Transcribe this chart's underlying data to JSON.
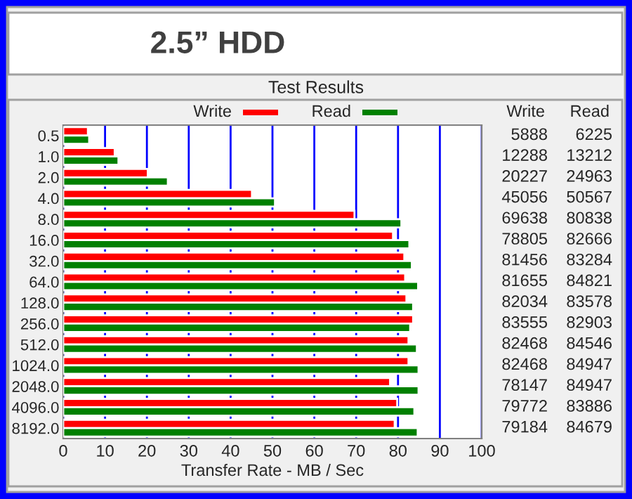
{
  "chart_data": {
    "type": "bar",
    "orientation": "horizontal",
    "title": "2.5” HDD",
    "subtitle": "Test Results",
    "xlabel": "Transfer Rate - MB / Sec",
    "categories": [
      "0.5",
      "1.0",
      "2.0",
      "4.0",
      "8.0",
      "16.0",
      "32.0",
      "64.0",
      "128.0",
      "256.0",
      "512.0",
      "1024.0",
      "2048.0",
      "4096.0",
      "8192.0"
    ],
    "series": [
      {
        "name": "Write",
        "color": "#ff0000",
        "values": [
          5.9,
          12.3,
          20.2,
          45.1,
          69.6,
          78.8,
          81.5,
          81.7,
          82.0,
          83.6,
          82.5,
          82.5,
          78.1,
          79.8,
          79.2
        ]
      },
      {
        "name": "Read",
        "color": "#008000",
        "values": [
          6.2,
          13.2,
          25.0,
          50.6,
          80.8,
          82.7,
          83.3,
          84.8,
          83.6,
          82.9,
          84.5,
          84.9,
          84.9,
          83.9,
          84.7
        ]
      }
    ],
    "annotations": [
      "5888",
      "12288",
      "20227",
      "45056",
      "69638",
      "78805",
      "81456",
      "81655",
      "82034",
      "83555",
      "82468",
      "82468",
      "78147",
      "79772",
      "79184",
      "6225",
      "13212",
      "24963",
      "50567",
      "80838",
      "82666",
      "83284",
      "84821",
      "83578",
      "82903",
      "84546",
      "84947",
      "84947",
      "83886",
      "84679"
    ],
    "xlim": [
      0,
      100
    ],
    "xticks": [
      0,
      10,
      20,
      30,
      40,
      50,
      60,
      70,
      80,
      90,
      100
    ],
    "grid": "x",
    "legend": "top"
  }
}
